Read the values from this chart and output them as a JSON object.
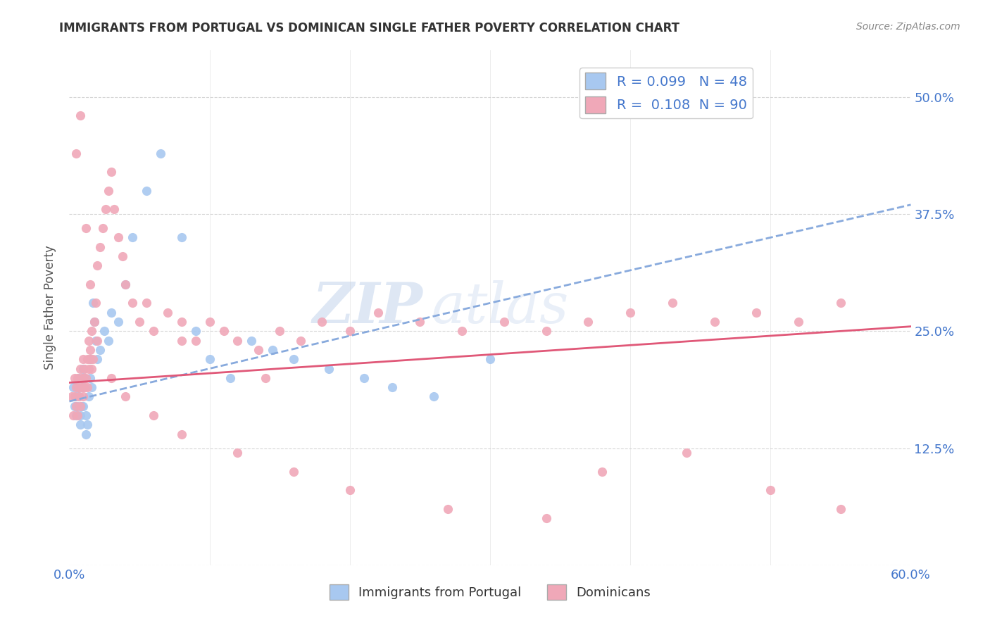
{
  "title": "IMMIGRANTS FROM PORTUGAL VS DOMINICAN SINGLE FATHER POVERTY CORRELATION CHART",
  "source_text": "Source: ZipAtlas.com",
  "ylabel": "Single Father Poverty",
  "legend_label_1": "Immigrants from Portugal",
  "legend_label_2": "Dominicans",
  "r1": 0.099,
  "n1": 48,
  "r2": 0.108,
  "n2": 90,
  "color1": "#a8c8f0",
  "color2": "#f0a8b8",
  "trendline1_color": "#88aadd",
  "trendline2_color": "#e05878",
  "xmin": 0.0,
  "xmax": 0.6,
  "ymin": 0.0,
  "ymax": 0.55,
  "axis_color": "#4477cc",
  "watermark_zip": "ZIP",
  "watermark_atlas": "atlas",
  "background_color": "#ffffff",
  "portugal_x": [
    0.003,
    0.004,
    0.005,
    0.005,
    0.006,
    0.006,
    0.007,
    0.007,
    0.008,
    0.008,
    0.009,
    0.009,
    0.01,
    0.01,
    0.01,
    0.011,
    0.012,
    0.012,
    0.013,
    0.014,
    0.015,
    0.015,
    0.016,
    0.017,
    0.018,
    0.019,
    0.02,
    0.022,
    0.025,
    0.028,
    0.03,
    0.035,
    0.04,
    0.045,
    0.055,
    0.065,
    0.08,
    0.09,
    0.1,
    0.115,
    0.13,
    0.145,
    0.16,
    0.185,
    0.21,
    0.23,
    0.26,
    0.3
  ],
  "portugal_y": [
    0.19,
    0.17,
    0.18,
    0.16,
    0.19,
    0.17,
    0.2,
    0.18,
    0.16,
    0.15,
    0.19,
    0.17,
    0.21,
    0.19,
    0.17,
    0.2,
    0.16,
    0.14,
    0.15,
    0.18,
    0.2,
    0.22,
    0.19,
    0.28,
    0.26,
    0.24,
    0.22,
    0.23,
    0.25,
    0.24,
    0.27,
    0.26,
    0.3,
    0.35,
    0.4,
    0.44,
    0.35,
    0.25,
    0.22,
    0.2,
    0.24,
    0.23,
    0.22,
    0.21,
    0.2,
    0.19,
    0.18,
    0.22
  ],
  "dominican_x": [
    0.002,
    0.003,
    0.004,
    0.004,
    0.005,
    0.005,
    0.006,
    0.006,
    0.007,
    0.007,
    0.008,
    0.008,
    0.009,
    0.009,
    0.01,
    0.01,
    0.01,
    0.011,
    0.011,
    0.012,
    0.013,
    0.013,
    0.014,
    0.014,
    0.015,
    0.015,
    0.016,
    0.016,
    0.017,
    0.018,
    0.019,
    0.02,
    0.022,
    0.024,
    0.026,
    0.028,
    0.03,
    0.032,
    0.035,
    0.038,
    0.04,
    0.045,
    0.05,
    0.055,
    0.06,
    0.07,
    0.08,
    0.09,
    0.1,
    0.11,
    0.12,
    0.135,
    0.15,
    0.165,
    0.18,
    0.2,
    0.22,
    0.25,
    0.28,
    0.31,
    0.34,
    0.37,
    0.4,
    0.43,
    0.46,
    0.49,
    0.52,
    0.55,
    0.005,
    0.008,
    0.012,
    0.015,
    0.02,
    0.03,
    0.04,
    0.06,
    0.08,
    0.12,
    0.16,
    0.2,
    0.27,
    0.34,
    0.38,
    0.44,
    0.5,
    0.55,
    0.08,
    0.14
  ],
  "dominican_y": [
    0.18,
    0.16,
    0.2,
    0.18,
    0.17,
    0.19,
    0.16,
    0.2,
    0.18,
    0.19,
    0.17,
    0.21,
    0.19,
    0.2,
    0.22,
    0.2,
    0.18,
    0.19,
    0.21,
    0.2,
    0.22,
    0.19,
    0.24,
    0.21,
    0.22,
    0.23,
    0.21,
    0.25,
    0.22,
    0.26,
    0.28,
    0.32,
    0.34,
    0.36,
    0.38,
    0.4,
    0.42,
    0.38,
    0.35,
    0.33,
    0.3,
    0.28,
    0.26,
    0.28,
    0.25,
    0.27,
    0.26,
    0.24,
    0.26,
    0.25,
    0.24,
    0.23,
    0.25,
    0.24,
    0.26,
    0.25,
    0.27,
    0.26,
    0.25,
    0.26,
    0.25,
    0.26,
    0.27,
    0.28,
    0.26,
    0.27,
    0.26,
    0.28,
    0.44,
    0.48,
    0.36,
    0.3,
    0.24,
    0.2,
    0.18,
    0.16,
    0.14,
    0.12,
    0.1,
    0.08,
    0.06,
    0.05,
    0.1,
    0.12,
    0.08,
    0.06,
    0.24,
    0.2
  ]
}
